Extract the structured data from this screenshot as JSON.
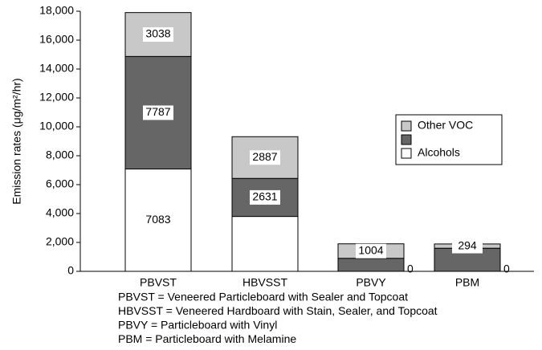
{
  "chart_data": {
    "type": "stacked_bar",
    "y_label": "Emission rates (μg/m²/hr)",
    "categories": [
      "PBVST",
      "HBVSST",
      "PBVY",
      "PBM"
    ],
    "series": [
      {
        "name": "Alcohols",
        "color": "#ffffff",
        "values": [
          7083,
          3800,
          0,
          0
        ],
        "show_labels": [
          true,
          false,
          true,
          true
        ]
      },
      {
        "name": null,
        "color": "#666666",
        "values": [
          7787,
          2631,
          900,
          1600
        ],
        "show_labels": [
          true,
          true,
          false,
          false
        ]
      },
      {
        "name": "Other VOC",
        "color": "#c8c8c8",
        "values": [
          3038,
          2887,
          1004,
          294
        ],
        "show_labels": [
          true,
          true,
          true,
          true
        ]
      }
    ],
    "ylim": [
      0,
      18000
    ],
    "yticks": [
      0,
      {
        "value": 2000,
        "label": "2,000"
      },
      {
        "value": 4000,
        "label": "4,000"
      },
      {
        "value": 6000,
        "label": "6,000"
      },
      {
        "value": 8000,
        "label": "8,000"
      },
      {
        "value": 10000,
        "label": "10,000"
      },
      {
        "value": 12000,
        "label": "12,000"
      },
      {
        "value": 14000,
        "label": "14,000"
      },
      {
        "value": 16000,
        "label": "16,000"
      },
      {
        "value": 18000,
        "label": "18,000"
      }
    ],
    "notes": [
      "PBVST = Veneered Particleboard with Sealer and Topcoat",
      "HBVSST = Veneered Hardboard with Stain, Sealer, and Topcoat",
      "PBVY = Particleboard with Vinyl",
      "PBM = Particleboard with Melamine"
    ]
  }
}
